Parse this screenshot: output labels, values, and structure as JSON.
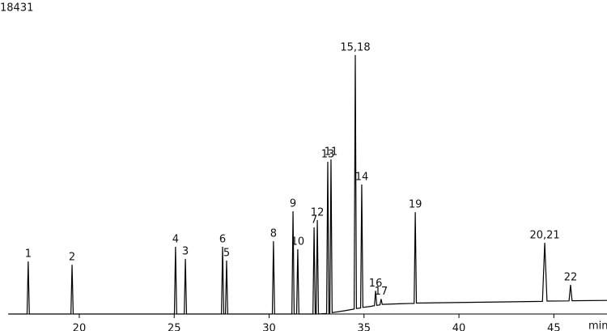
{
  "chart_data": {
    "type": "line",
    "x_label": "min",
    "color": "#000000",
    "grid": false,
    "xlim": [
      16.25,
      47.8
    ],
    "xticks": [
      20,
      25,
      30,
      35,
      40,
      45
    ],
    "ylim": [
      0,
      18431
    ],
    "yticks": [
      18431
    ],
    "x": [
      16.3,
      17.25,
      17.31,
      17.37,
      19.56,
      19.62,
      19.68,
      25.01,
      25.07,
      25.13,
      25.53,
      25.59,
      25.65,
      27.49,
      27.55,
      27.61,
      27.7,
      27.76,
      27.82,
      30.17,
      30.23,
      30.29,
      31.2,
      31.26,
      31.32,
      31.45,
      31.51,
      31.57,
      32.31,
      32.37,
      32.43,
      32.48,
      32.54,
      32.6,
      33.03,
      33.09,
      33.15,
      33.2,
      33.26,
      33.32,
      34.0,
      34.48,
      34.54,
      34.6,
      34.82,
      34.88,
      34.94,
      35.3,
      35.55,
      35.61,
      35.67,
      35.84,
      35.9,
      35.96,
      37.0,
      37.64,
      37.7,
      37.76,
      40.5,
      44.4,
      44.52,
      44.64,
      45.8,
      45.88,
      45.96,
      47.8
    ],
    "values": [
      0,
      0,
      3170,
      0,
      0,
      2970,
      0,
      0,
      4050,
      0,
      0,
      3320,
      0,
      0,
      4050,
      0,
      0,
      3220,
      0,
      0,
      4390,
      0,
      0,
      6190,
      0,
      0,
      3900,
      0,
      0,
      5220,
      0,
      0,
      5660,
      0,
      30,
      9170,
      50,
      60,
      9310,
      80,
      200,
      300,
      15600,
      330,
      360,
      7800,
      400,
      450,
      500,
      1400,
      520,
      550,
      900,
      580,
      620,
      640,
      6140,
      660,
      700,
      760,
      4290,
      780,
      790,
      1760,
      800,
      820
    ],
    "annotations": [
      {
        "text": "1",
        "x": 17.31,
        "y": 3170
      },
      {
        "text": "2",
        "x": 19.62,
        "y": 2970
      },
      {
        "text": "4",
        "x": 25.07,
        "y": 4050
      },
      {
        "text": "3",
        "x": 25.59,
        "y": 3320
      },
      {
        "text": "6",
        "x": 27.55,
        "y": 4050
      },
      {
        "text": "5",
        "x": 27.76,
        "y": 3220
      },
      {
        "text": "8",
        "x": 30.23,
        "y": 4390
      },
      {
        "text": "9",
        "x": 31.26,
        "y": 6190
      },
      {
        "text": "10",
        "x": 31.51,
        "y": 3900
      },
      {
        "text": "7",
        "x": 32.37,
        "y": 5220
      },
      {
        "text": "12",
        "x": 32.54,
        "y": 5660
      },
      {
        "text": "13",
        "x": 33.09,
        "y": 9170
      },
      {
        "text": "11",
        "x": 33.26,
        "y": 9310
      },
      {
        "text": "15,18",
        "x": 34.54,
        "y": 15600
      },
      {
        "text": "14",
        "x": 34.88,
        "y": 7800
      },
      {
        "text": "16",
        "x": 35.61,
        "y": 1400
      },
      {
        "text": "17",
        "x": 35.9,
        "y": 900
      },
      {
        "text": "19",
        "x": 37.7,
        "y": 6140
      },
      {
        "text": "20,21",
        "x": 44.52,
        "y": 4290
      },
      {
        "text": "22",
        "x": 45.88,
        "y": 1760
      }
    ]
  }
}
